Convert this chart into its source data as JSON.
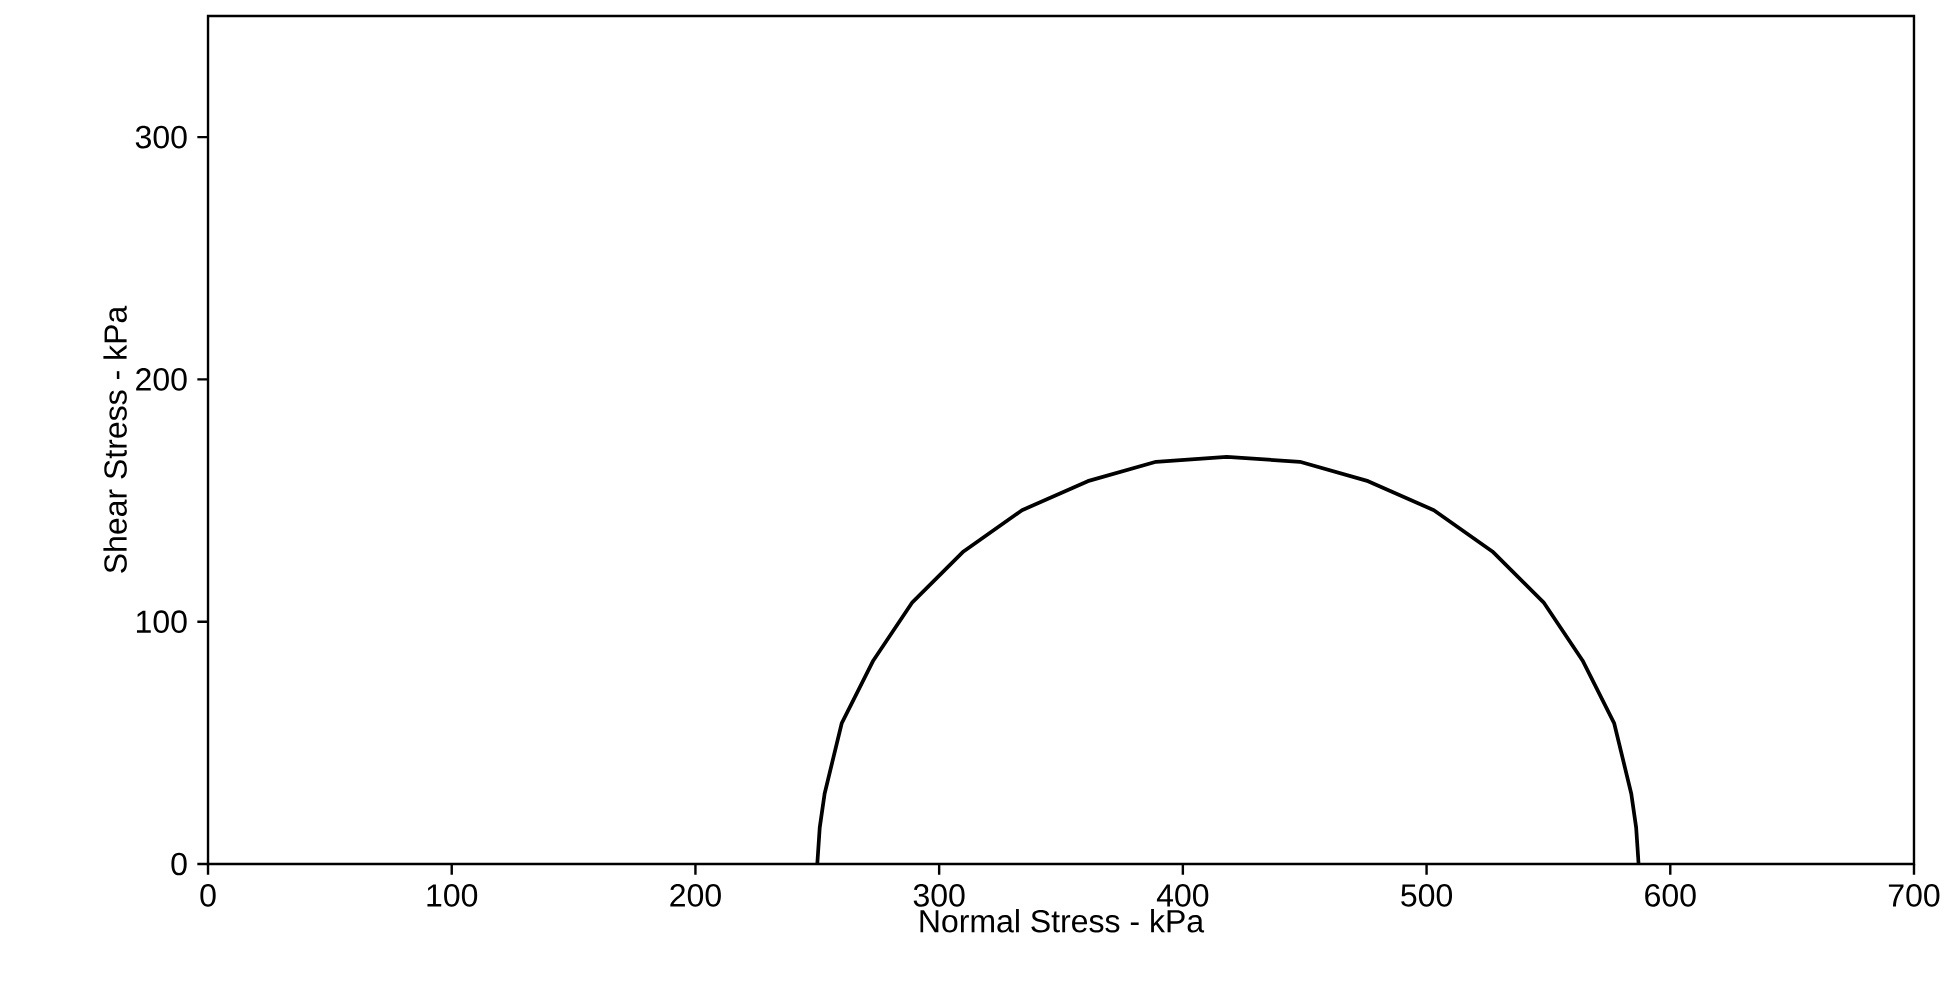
{
  "chart_data": {
    "type": "line",
    "xlabel": "Normal Stress - kPa",
    "ylabel": "Shear Stress - kPa",
    "series": [
      {
        "color": "#000000",
        "x": [
          250,
          251,
          253,
          260,
          273,
          289,
          310,
          334,
          361,
          389,
          418,
          448,
          476,
          503,
          527,
          548,
          564,
          577,
          584,
          586,
          587
        ],
        "values": [
          0,
          15,
          29,
          58,
          84,
          108,
          129,
          146,
          158,
          166,
          168,
          166,
          158,
          146,
          129,
          108,
          84,
          58,
          29,
          15,
          0
        ]
      }
    ],
    "xlim": [
      0,
      700
    ],
    "ylim": [
      0,
      350
    ],
    "xticks": [
      0,
      100,
      200,
      300,
      400,
      500,
      600,
      700
    ],
    "yticks": [
      0,
      100,
      200,
      300
    ],
    "grid": false,
    "marker": "none",
    "line_style": "solid"
  }
}
